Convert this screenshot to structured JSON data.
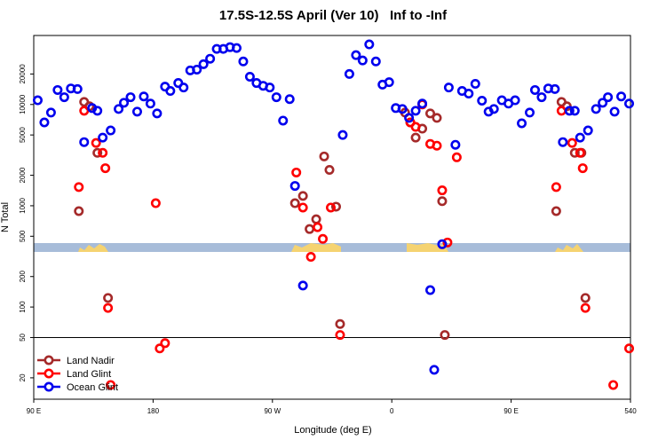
{
  "chart_data": {
    "type": "scatter",
    "title": "17.5S-12.5S April (Ver 10)   Inf to -Inf",
    "x_label": "Longitude (deg E)",
    "y_label": "N Total",
    "xlim": [
      90,
      540
    ],
    "ylim": [
      12.3,
      48000
    ],
    "log_y": true,
    "hline": 50,
    "legend": "bottom-left",
    "xticks": [
      {
        "value": 90,
        "label": "90 E"
      },
      180,
      {
        "value": 270,
        "label": "90 W"
      },
      {
        "value": 360,
        "label": "0"
      },
      {
        "value": 450,
        "label": "90 E"
      },
      540
    ],
    "yticks": [
      20,
      50,
      100,
      200,
      500,
      1000,
      2000,
      5000,
      10000,
      20000
    ],
    "series": [
      {
        "name": "Land Nadir",
        "color": "#a52a2a",
        "x": [
          124,
          128,
          132,
          138,
          146,
          287,
          293,
          298,
          303,
          309,
          313,
          318,
          321,
          370,
          374,
          378,
          383,
          389,
          394,
          398,
          400,
          484,
          488,
          492,
          498,
          503,
          506
        ],
        "values": [
          885,
          10600,
          9600,
          3330,
          123,
          1060,
          1250,
          589,
          736,
          3070,
          2260,
          980,
          68,
          8320,
          6650,
          4710,
          5770,
          8160,
          7370,
          1110,
          53,
          885,
          10600,
          9600,
          3330,
          3330,
          123
        ]
      },
      {
        "name": "Land Glint",
        "color": "#ff0000",
        "x": [
          124,
          128,
          137,
          142,
          144,
          146,
          148,
          182,
          185,
          189,
          288,
          293,
          299,
          304,
          308,
          314,
          321,
          374,
          378,
          383,
          389,
          394,
          398,
          402,
          409,
          484,
          488,
          496,
          502,
          504,
          506,
          527,
          539
        ],
        "values": [
          1530,
          8670,
          4170,
          3330,
          2350,
          98,
          17,
          1060,
          39,
          44,
          2130,
          960,
          313,
          614,
          471,
          960,
          53,
          6650,
          6010,
          10000,
          4080,
          3920,
          1420,
          434,
          3010,
          1530,
          8670,
          4170,
          3330,
          2350,
          98,
          17,
          39
        ]
      },
      {
        "name": "Ocean Glint",
        "color": "#0000ee",
        "x": [
          93,
          98,
          103,
          108,
          113,
          118,
          123,
          128,
          134,
          138,
          142,
          148,
          154,
          158,
          163,
          168,
          173,
          178,
          183,
          189,
          193,
          199,
          203,
          208,
          213,
          218,
          223,
          228,
          233,
          238,
          243,
          248,
          253,
          258,
          263,
          268,
          273,
          278,
          283,
          287,
          293,
          323,
          328,
          333,
          338,
          343,
          348,
          353,
          358,
          363,
          368,
          373,
          378,
          383,
          389,
          392,
          398,
          403,
          408,
          413,
          418,
          423,
          428,
          433,
          437,
          443,
          448,
          453,
          458,
          464,
          468,
          473,
          478,
          483,
          489,
          494,
          498,
          502,
          508,
          514,
          519,
          523,
          528,
          533,
          539
        ],
        "values": [
          11000,
          6650,
          8320,
          13900,
          11800,
          14400,
          14200,
          4250,
          9220,
          8670,
          4710,
          5540,
          9030,
          10400,
          11800,
          8500,
          12000,
          10200,
          8160,
          15000,
          13600,
          16300,
          14700,
          21700,
          22100,
          25000,
          28300,
          35400,
          35400,
          36800,
          36100,
          26600,
          18800,
          16300,
          15300,
          14700,
          11800,
          6930,
          11300,
          1570,
          163,
          5000,
          20000,
          30700,
          27200,
          39200,
          26600,
          15700,
          16600,
          9220,
          9030,
          7370,
          8670,
          10200,
          147,
          24,
          417,
          14700,
          4000,
          13600,
          12800,
          16000,
          10900,
          8500,
          9030,
          11000,
          10200,
          11000,
          6520,
          8320,
          13900,
          11800,
          14400,
          14200,
          4250,
          8670,
          8670,
          4710,
          5540,
          9030,
          10400,
          11800,
          8500,
          12000,
          10200
        ]
      }
    ]
  }
}
